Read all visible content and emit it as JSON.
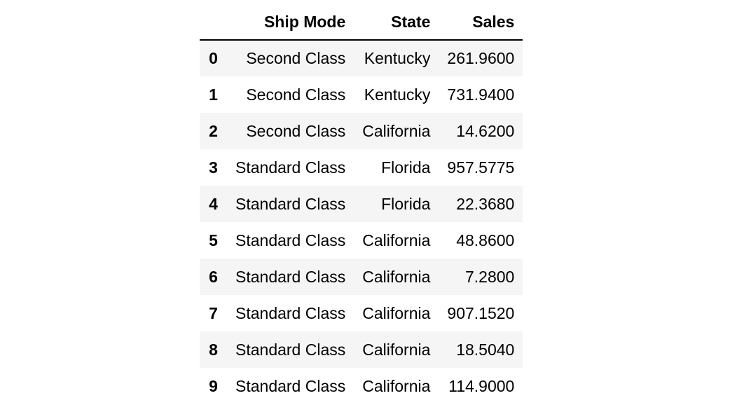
{
  "table": {
    "columns": [
      "",
      "Ship Mode",
      "State",
      "Sales"
    ],
    "rows": [
      {
        "index": "0",
        "ship_mode": "Second Class",
        "state": "Kentucky",
        "sales": "261.9600"
      },
      {
        "index": "1",
        "ship_mode": "Second Class",
        "state": "Kentucky",
        "sales": "731.9400"
      },
      {
        "index": "2",
        "ship_mode": "Second Class",
        "state": "California",
        "sales": "14.6200"
      },
      {
        "index": "3",
        "ship_mode": "Standard Class",
        "state": "Florida",
        "sales": "957.5775"
      },
      {
        "index": "4",
        "ship_mode": "Standard Class",
        "state": "Florida",
        "sales": "22.3680"
      },
      {
        "index": "5",
        "ship_mode": "Standard Class",
        "state": "California",
        "sales": "48.8600"
      },
      {
        "index": "6",
        "ship_mode": "Standard Class",
        "state": "California",
        "sales": "7.2800"
      },
      {
        "index": "7",
        "ship_mode": "Standard Class",
        "state": "California",
        "sales": "907.1520"
      },
      {
        "index": "8",
        "ship_mode": "Standard Class",
        "state": "California",
        "sales": "18.5040"
      },
      {
        "index": "9",
        "ship_mode": "Standard Class",
        "state": "California",
        "sales": "114.9000"
      }
    ]
  }
}
